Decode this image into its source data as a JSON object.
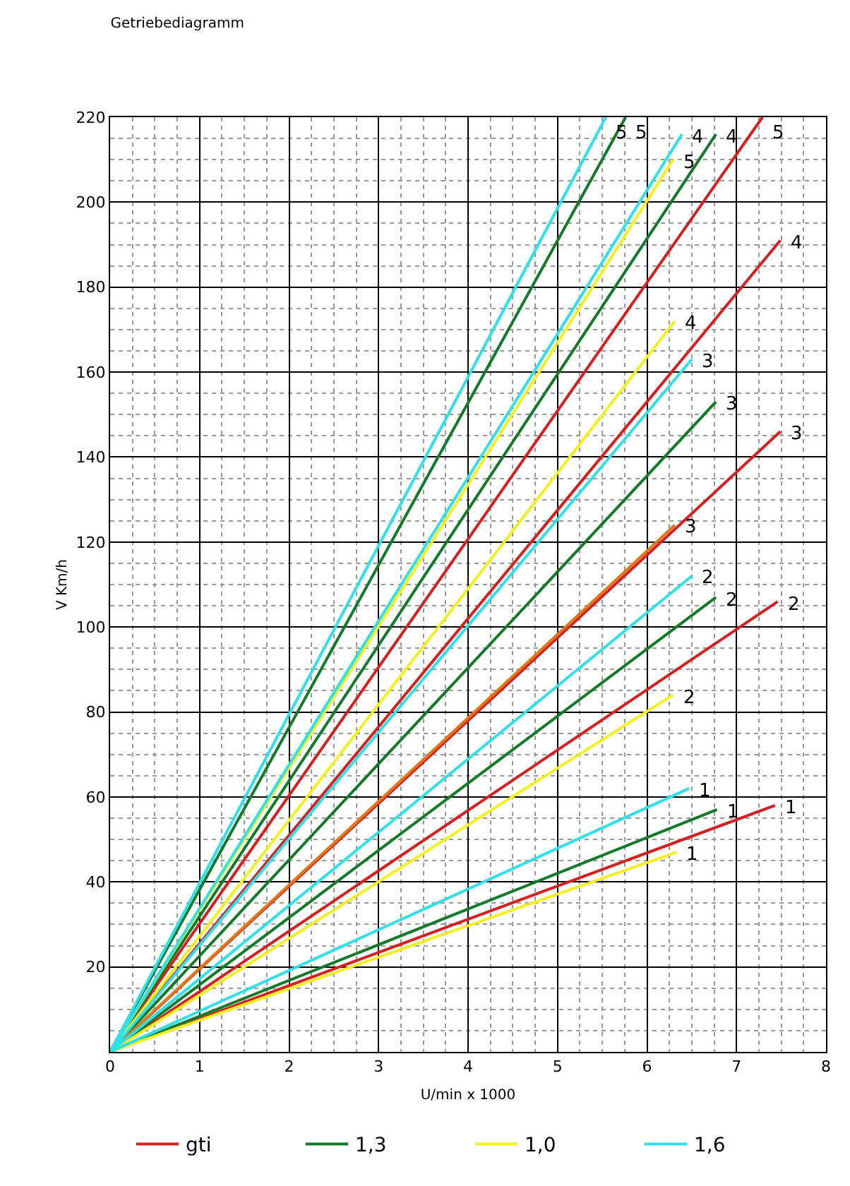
{
  "chart_data": {
    "type": "line",
    "title": "Getriebediagramm",
    "xlabel": "U/min x 1000",
    "ylabel": "V Km/h",
    "xlim": [
      0,
      8
    ],
    "xticks": [
      0,
      1,
      2,
      3,
      4,
      5,
      6,
      7,
      8
    ],
    "ylim": [
      0,
      220
    ],
    "yticks": [
      {
        "value": 0,
        "label": null
      },
      20,
      40,
      60,
      80,
      100,
      120,
      140,
      160,
      180,
      200,
      220
    ],
    "grid": true,
    "legend": "bottom",
    "line_style": "solid",
    "series": [
      {
        "name": "gti",
        "color": "#d42020",
        "x": [
          0,
          7.43
        ],
        "values": [
          0,
          58
        ]
      },
      {
        "color": "#d42020",
        "x": [
          0,
          7.46
        ],
        "values": [
          0,
          106
        ]
      },
      {
        "color": "#d42020",
        "x": [
          0,
          7.49
        ],
        "values": [
          0,
          146
        ]
      },
      {
        "color": "#d42020",
        "x": [
          0,
          7.49
        ],
        "values": [
          0,
          191
        ]
      },
      {
        "color": "#d42020",
        "x": [
          0,
          7.29
        ],
        "values": [
          0,
          220
        ]
      },
      {
        "name": "1,3",
        "color": "#137a2a",
        "x": [
          0,
          6.78
        ],
        "values": [
          0,
          57
        ]
      },
      {
        "color": "#137a2a",
        "x": [
          0,
          6.77
        ],
        "values": [
          0,
          107
        ]
      },
      {
        "color": "#137a2a",
        "x": [
          0,
          6.77
        ],
        "values": [
          0,
          153
        ]
      },
      {
        "color": "#137a2a",
        "x": [
          0,
          6.77
        ],
        "values": [
          0,
          216
        ]
      },
      {
        "color": "#137a2a",
        "x": [
          0,
          5.76
        ],
        "values": [
          0,
          220
        ]
      },
      {
        "name": "1,0",
        "color": "#f4f020",
        "x": [
          0,
          6.33
        ],
        "values": [
          0,
          47
        ]
      },
      {
        "color": "#f4f020",
        "x": [
          0,
          6.29
        ],
        "values": [
          0,
          84
        ]
      },
      {
        "color": "#e07818",
        "x": [
          0,
          6.31
        ],
        "values": [
          0,
          124
        ]
      },
      {
        "color": "#f4f020",
        "x": [
          0,
          6.31
        ],
        "values": [
          0,
          172
        ]
      },
      {
        "color": "#f4f020",
        "x": [
          0,
          6.29
        ],
        "values": [
          0,
          210
        ]
      },
      {
        "name": "1,6",
        "color": "#30e0e8",
        "x": [
          0,
          6.47
        ],
        "values": [
          0,
          62
        ]
      },
      {
        "color": "#30e0e8",
        "x": [
          0,
          6.5
        ],
        "values": [
          0,
          112
        ]
      },
      {
        "color": "#30e0e8",
        "x": [
          0,
          6.5
        ],
        "values": [
          0,
          163
        ]
      },
      {
        "color": "#30e0e8",
        "x": [
          0,
          6.39
        ],
        "values": [
          0,
          216
        ]
      },
      {
        "color": "#30e0e8",
        "x": [
          0,
          5.54
        ],
        "values": [
          0,
          220
        ]
      }
    ],
    "annotations": [
      {
        "text": "1",
        "x": 7.43,
        "y": 58
      },
      {
        "text": "2",
        "x": 7.46,
        "y": 106
      },
      {
        "text": "3",
        "x": 7.49,
        "y": 146
      },
      {
        "text": "4",
        "x": 7.49,
        "y": 191
      },
      {
        "text": "5",
        "x": 7.29,
        "y": 220
      },
      {
        "text": "1",
        "x": 6.78,
        "y": 57
      },
      {
        "text": "2",
        "x": 6.77,
        "y": 107
      },
      {
        "text": "3",
        "x": 6.77,
        "y": 153
      },
      {
        "text": "4",
        "x": 6.77,
        "y": 216
      },
      {
        "text": "5",
        "x": 5.76,
        "y": 220
      },
      {
        "text": "1",
        "x": 6.33,
        "y": 47
      },
      {
        "text": "2",
        "x": 6.29,
        "y": 84
      },
      {
        "text": "3",
        "x": 6.31,
        "y": 124
      },
      {
        "text": "4",
        "x": 6.31,
        "y": 172
      },
      {
        "text": "5",
        "x": 6.29,
        "y": 210
      },
      {
        "text": "1",
        "x": 6.47,
        "y": 62
      },
      {
        "text": "2",
        "x": 6.5,
        "y": 112
      },
      {
        "text": "3",
        "x": 6.5,
        "y": 163
      },
      {
        "text": "4",
        "x": 6.39,
        "y": 216
      },
      {
        "text": "5",
        "x": 5.54,
        "y": 220
      }
    ]
  }
}
